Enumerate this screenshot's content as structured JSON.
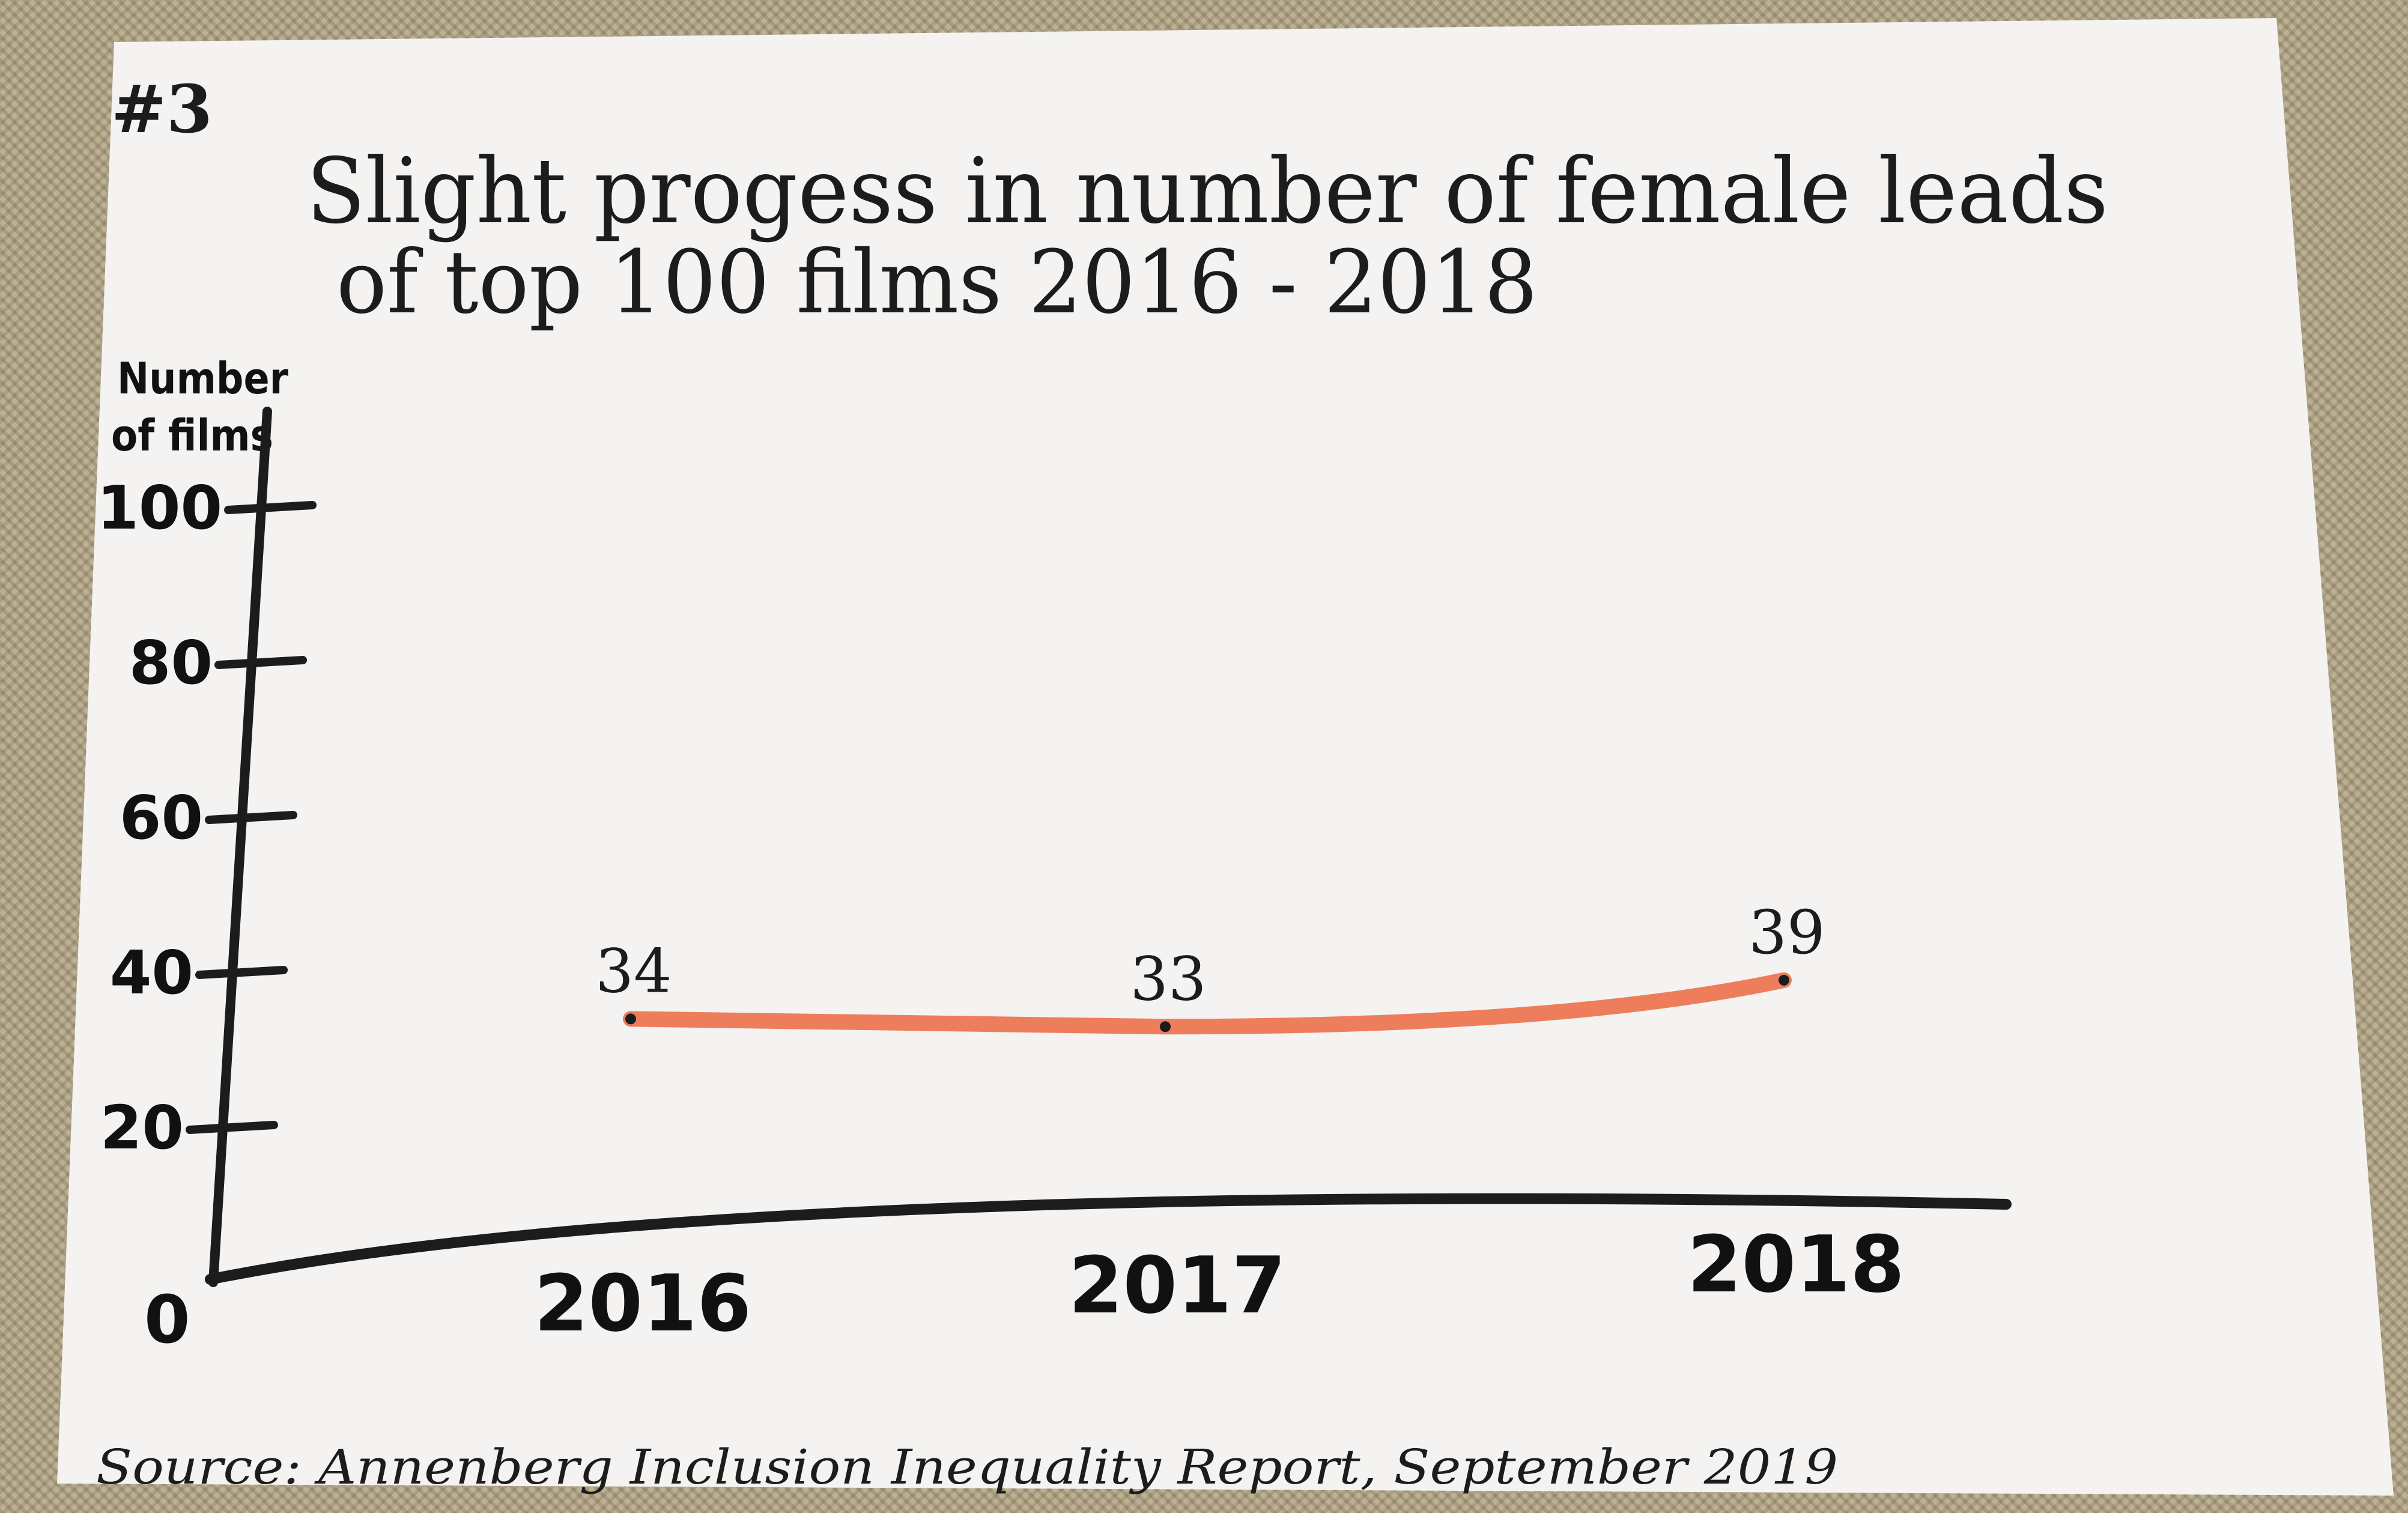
{
  "page": {
    "number_tag": "#3",
    "source": "Source: Annenberg Inclusion Inequality Report, September 2019"
  },
  "chart_data": {
    "type": "line",
    "title_line1": "Slight progess in number of female leads",
    "title_line2": "of top 100 films 2016 - 2018",
    "ylabel_line1": "Number",
    "ylabel_line2": "of films",
    "xlabel": "",
    "categories": [
      "2016",
      "2017",
      "2018"
    ],
    "series": [
      {
        "values": [
          34,
          33,
          39
        ],
        "data_labels": [
          "34",
          "33",
          "39"
        ]
      }
    ],
    "y_ticks": [
      20,
      40,
      60,
      80,
      100
    ],
    "y_tick_labels": [
      "20",
      "40",
      "60",
      "80",
      "100"
    ],
    "origin_label": "0",
    "ylim": [
      0,
      110
    ],
    "grid": false,
    "line_color": "#ee7d5c",
    "ink_color": "#1c1c1c",
    "paper_color": "#f4f3f1"
  }
}
